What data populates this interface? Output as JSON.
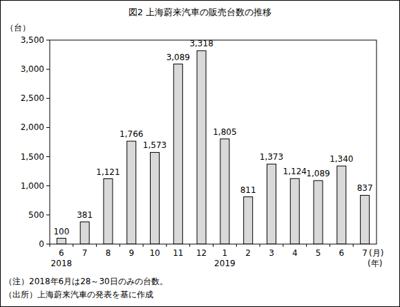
{
  "chart_data": {
    "type": "bar",
    "title": "図2 上海蔚来汽車の販売台数の推移",
    "y_label": "（台）",
    "x_label": "(月)",
    "x_secondary_label": "(年)",
    "categories": [
      "6",
      "7",
      "8",
      "9",
      "10",
      "11",
      "12",
      "1",
      "2",
      "3",
      "4",
      "5",
      "6",
      "7"
    ],
    "x_secondary_labels": [
      "2018",
      null,
      null,
      null,
      null,
      null,
      null,
      "2019",
      null,
      null,
      null,
      null,
      null,
      null
    ],
    "values": [
      100,
      381,
      1121,
      1766,
      1573,
      3089,
      3318,
      1805,
      811,
      1373,
      1124,
      1089,
      1340,
      837
    ],
    "value_labels": [
      "100",
      "381",
      "1,121",
      "1,766",
      "1,573",
      "3,089",
      "3,318",
      "1,805",
      "811",
      "1,373",
      "1,124",
      "1,089",
      "1,340",
      "837"
    ],
    "color": "#d9d9d9",
    "data_labels": true,
    "grid": false,
    "ylim": [
      0,
      3500
    ],
    "yticks": [
      0,
      500,
      {
        "value": 1000,
        "label": "1,000"
      },
      {
        "value": 1500,
        "label": "1,500"
      },
      {
        "value": 2000,
        "label": "2,000"
      },
      {
        "value": 2500,
        "label": "2,500"
      },
      {
        "value": 3000,
        "label": "3,000"
      },
      {
        "value": 3500,
        "label": "3,500"
      }
    ],
    "notes": [
      "（注）2018年6月は28～30日のみの台数。",
      "（出所）上海蔚来汽車の発表を基に作成"
    ]
  }
}
